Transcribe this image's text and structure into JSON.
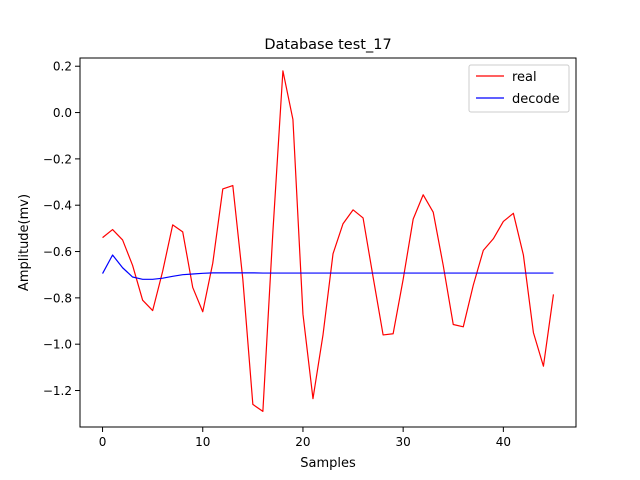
{
  "chart_data": {
    "type": "line",
    "title": "Database test_17",
    "xlabel": "Samples",
    "ylabel": "Amplitude(mv)",
    "xlim": [
      -2.25,
      47.25
    ],
    "ylim": [
      -1.3575,
      0.2355
    ],
    "xticks": [
      0,
      10,
      20,
      30,
      40
    ],
    "xtick_labels": [
      "0",
      "10",
      "20",
      "30",
      "40"
    ],
    "yticks": [
      0.2,
      0.0,
      -0.2,
      -0.4,
      -0.6,
      -0.8,
      -1.0,
      -1.2
    ],
    "ytick_labels": [
      "0.2",
      "0.0",
      "−0.2",
      "−0.4",
      "−0.6",
      "−0.8",
      "−1.0",
      "−1.2"
    ],
    "grid": false,
    "legend_position": "upper right",
    "x": [
      0,
      1,
      2,
      3,
      4,
      5,
      6,
      7,
      8,
      9,
      10,
      11,
      12,
      13,
      14,
      15,
      16,
      17,
      18,
      19,
      20,
      21,
      22,
      23,
      24,
      25,
      26,
      27,
      28,
      29,
      30,
      31,
      32,
      33,
      34,
      35,
      36,
      37,
      38,
      39,
      40,
      41,
      42,
      43,
      44,
      45
    ],
    "series": [
      {
        "name": "real",
        "color": "#ff0000",
        "values": [
          -0.54,
          -0.505,
          -0.55,
          -0.66,
          -0.81,
          -0.855,
          -0.685,
          -0.485,
          -0.515,
          -0.755,
          -0.86,
          -0.65,
          -0.33,
          -0.315,
          -0.72,
          -1.26,
          -1.29,
          -0.515,
          0.18,
          -0.03,
          -0.87,
          -1.235,
          -0.96,
          -0.61,
          -0.48,
          -0.42,
          -0.455,
          -0.71,
          -0.96,
          -0.955,
          -0.72,
          -0.46,
          -0.355,
          -0.43,
          -0.66,
          -0.915,
          -0.925,
          -0.745,
          -0.595,
          -0.545,
          -0.47,
          -0.435,
          -0.615,
          -0.95,
          -1.095,
          -0.785
        ]
      },
      {
        "name": "decode",
        "color": "#0000ff",
        "values": [
          -0.695,
          -0.615,
          -0.67,
          -0.71,
          -0.72,
          -0.72,
          -0.715,
          -0.707,
          -0.7,
          -0.697,
          -0.694,
          -0.692,
          -0.692,
          -0.692,
          -0.692,
          -0.692,
          -0.693,
          -0.693,
          -0.693,
          -0.693,
          -0.693,
          -0.693,
          -0.693,
          -0.693,
          -0.693,
          -0.693,
          -0.693,
          -0.693,
          -0.693,
          -0.693,
          -0.693,
          -0.693,
          -0.693,
          -0.693,
          -0.693,
          -0.693,
          -0.693,
          -0.693,
          -0.693,
          -0.693,
          -0.693,
          -0.693,
          -0.693,
          -0.693,
          -0.693,
          -0.693
        ]
      }
    ]
  }
}
